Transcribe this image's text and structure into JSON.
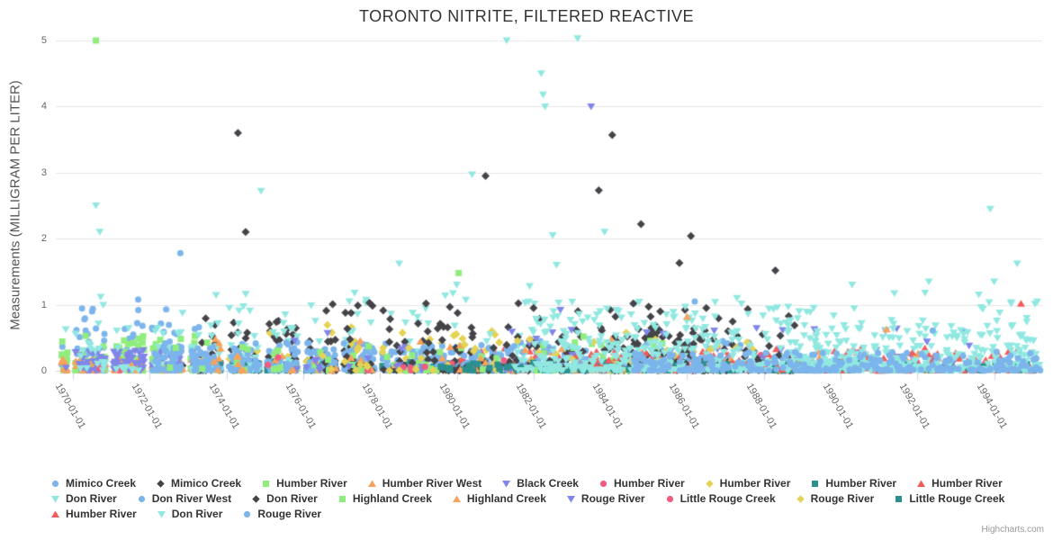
{
  "title": "TORONTO NITRITE, FILTERED REACTIVE",
  "credit": "Highcharts.com",
  "chart_data": {
    "type": "scatter",
    "title": "TORONTO NITRITE, FILTERED REACTIVE",
    "xlabel": "",
    "ylabel": "Measurements (MILLIGRAM PER LITER)",
    "ylim": [
      0,
      5
    ],
    "y_ticks": [
      0,
      1,
      2,
      3,
      4,
      5
    ],
    "x_ticks": [
      "1970-01-01",
      "1972-01-01",
      "1974-01-01",
      "1976-01-01",
      "1978-01-01",
      "1980-01-01",
      "1982-01-01",
      "1984-01-01",
      "1986-01-01",
      "1988-01-01",
      "1990-01-01",
      "1992-01-01",
      "1994-01-01"
    ],
    "x_tick_years": [
      1970,
      1972,
      1974,
      1976,
      1978,
      1980,
      1982,
      1984,
      1986,
      1988,
      1990,
      1992,
      1994
    ],
    "x_range_years": [
      1969.55,
      1995.3
    ],
    "grid": true,
    "legend_position": "bottom",
    "colors": {
      "grid": "#e6e6e6",
      "axis_line": "#ccd6eb",
      "tick": "#ccd6eb",
      "label": "#666666",
      "title": "#333333",
      "legend_text": "#333333",
      "credit": "#999999"
    },
    "series": [
      {
        "name": "Mimico Creek",
        "marker": "circle",
        "color": "#7cb5ec"
      },
      {
        "name": "Mimico Creek",
        "marker": "diamond",
        "color": "#434348"
      },
      {
        "name": "Humber River",
        "marker": "square",
        "color": "#90ed7d"
      },
      {
        "name": "Humber River West",
        "marker": "triangle",
        "color": "#f7a35c"
      },
      {
        "name": "Black Creek",
        "marker": "triangle-down",
        "color": "#8085e9"
      },
      {
        "name": "Humber River",
        "marker": "circle",
        "color": "#f15c80"
      },
      {
        "name": "Humber River",
        "marker": "diamond",
        "color": "#e4d354"
      },
      {
        "name": "Humber River",
        "marker": "square",
        "color": "#2b908f"
      },
      {
        "name": "Humber River",
        "marker": "triangle",
        "color": "#f45b5b"
      },
      {
        "name": "Don River",
        "marker": "triangle-down",
        "color": "#91e8e1"
      },
      {
        "name": "Don River West",
        "marker": "circle",
        "color": "#7cb5ec"
      },
      {
        "name": "Don River",
        "marker": "diamond",
        "color": "#434348"
      },
      {
        "name": "Highland Creek",
        "marker": "square",
        "color": "#90ed7d"
      },
      {
        "name": "Highland Creek",
        "marker": "triangle",
        "color": "#f7a35c"
      },
      {
        "name": "Rouge River",
        "marker": "triangle-down",
        "color": "#8085e9"
      },
      {
        "name": "Little Rouge Creek",
        "marker": "circle",
        "color": "#f15c80"
      },
      {
        "name": "Rouge River",
        "marker": "diamond",
        "color": "#e4d354"
      },
      {
        "name": "Little Rouge Creek",
        "marker": "square",
        "color": "#2b908f"
      },
      {
        "name": "Humber River",
        "marker": "triangle",
        "color": "#f45b5b"
      },
      {
        "name": "Don River",
        "marker": "triangle-down",
        "color": "#91e8e1"
      },
      {
        "name": "Rouge River",
        "marker": "circle",
        "color": "#7cb5ec"
      }
    ],
    "outlier_points": [
      [
        2,
        1970.6,
        5.0
      ],
      [
        9,
        1981.3,
        5.0
      ],
      [
        19,
        1983.15,
        5.03
      ],
      [
        19,
        1982.2,
        4.5
      ],
      [
        19,
        1982.25,
        4.18
      ],
      [
        19,
        1982.3,
        4.0
      ],
      [
        14,
        1983.5,
        4.0
      ],
      [
        1,
        1974.3,
        3.6
      ],
      [
        11,
        1984.05,
        3.57
      ],
      [
        9,
        1980.4,
        2.97
      ],
      [
        11,
        1980.75,
        2.95
      ],
      [
        11,
        1983.7,
        2.73
      ],
      [
        9,
        1974.9,
        2.72
      ],
      [
        9,
        1970.6,
        2.5
      ],
      [
        19,
        1993.9,
        2.45
      ],
      [
        11,
        1984.8,
        2.22
      ],
      [
        1,
        1974.5,
        2.1
      ],
      [
        9,
        1970.7,
        2.1
      ],
      [
        11,
        1986.1,
        2.04
      ],
      [
        19,
        1982.5,
        2.05
      ],
      [
        19,
        1983.85,
        2.1
      ],
      [
        11,
        1985.8,
        1.63
      ],
      [
        0,
        1972.8,
        1.78
      ],
      [
        0,
        1971.7,
        1.08
      ],
      [
        19,
        1994.6,
        1.62
      ],
      [
        9,
        1978.5,
        1.62
      ],
      [
        19,
        1982.6,
        1.6
      ],
      [
        9,
        1980.0,
        1.3
      ],
      [
        9,
        1981.9,
        1.28
      ],
      [
        11,
        1988.3,
        1.52
      ],
      [
        10,
        1986.2,
        1.05
      ],
      [
        11,
        1984.6,
        1.02
      ],
      [
        11,
        1985.0,
        0.97
      ],
      [
        11,
        1985.3,
        0.9
      ],
      [
        11,
        1986.5,
        0.95
      ],
      [
        18,
        1994.7,
        1.02
      ],
      [
        19,
        1990.3,
        1.3
      ],
      [
        19,
        1992.3,
        1.35
      ],
      [
        19,
        1992.2,
        1.18
      ],
      [
        19,
        1993.6,
        1.15
      ],
      [
        19,
        1994.0,
        1.35
      ],
      [
        13,
        1991.2,
        0.63
      ],
      [
        13,
        1986.0,
        0.82
      ],
      [
        14,
        1982.7,
        0.92
      ],
      [
        9,
        1977.2,
        1.05
      ],
      [
        1,
        1976.6,
        0.91
      ],
      [
        12,
        1980.05,
        1.48
      ],
      [
        11,
        1982.0,
        0.95
      ],
      [
        19,
        1987.3,
        1.1
      ],
      [
        9,
        1979.9,
        1.17
      ],
      [
        0,
        1970.5,
        0.9
      ],
      [
        0,
        1970.3,
        0.78
      ],
      [
        19,
        1989.3,
        0.95
      ],
      [
        19,
        1991.4,
        1.17
      ],
      [
        20,
        1992.4,
        0.61
      ],
      [
        14,
        1992.25,
        0.44
      ],
      [
        11,
        1977.1,
        0.88
      ],
      [
        12,
        1983.3,
        0.52
      ]
    ],
    "cluster_specs": [
      [
        0,
        1969.8,
        1973.3,
        130,
        0.95,
        3.2
      ],
      [
        1,
        1972.9,
        1977.3,
        90,
        0.8,
        2.6
      ],
      [
        2,
        1969.8,
        1973.2,
        120,
        0.55,
        2.4
      ],
      [
        3,
        1969.8,
        1973.2,
        90,
        0.18,
        2.0
      ],
      [
        4,
        1969.8,
        1973.2,
        110,
        0.3,
        1.6
      ],
      [
        5,
        1970.0,
        1989.0,
        25,
        0.25,
        2.0
      ],
      [
        6,
        1973.3,
        1981.5,
        70,
        0.7,
        2.4
      ],
      [
        7,
        1973.4,
        1990.0,
        260,
        0.14,
        1.8
      ],
      [
        8,
        1980.0,
        1995.2,
        150,
        0.35,
        2.5
      ],
      [
        9,
        1969.8,
        1983.0,
        190,
        1.2,
        3.5
      ],
      [
        9,
        1973.5,
        1976.0,
        40,
        1.0,
        2.5
      ],
      [
        10,
        1972.0,
        1988.5,
        420,
        0.45,
        2.5
      ],
      [
        10,
        1972.0,
        1980.0,
        150,
        0.35,
        2.0
      ],
      [
        11,
        1976.5,
        1989.0,
        260,
        1.05,
        3.0
      ],
      [
        11,
        1984.0,
        1986.5,
        80,
        0.65,
        1.5
      ],
      [
        12,
        1972.5,
        1986.0,
        70,
        0.45,
        2.2
      ],
      [
        13,
        1973.5,
        1992.5,
        80,
        0.5,
        2.6
      ],
      [
        14,
        1975.5,
        1993.5,
        75,
        0.65,
        2.6
      ],
      [
        15,
        1975.0,
        1992.0,
        25,
        0.2,
        2.0
      ],
      [
        16,
        1976.5,
        1988.5,
        60,
        0.6,
        2.4
      ],
      [
        17,
        1979.5,
        1995.2,
        160,
        0.12,
        1.8
      ],
      [
        18,
        1983.5,
        1995.2,
        110,
        0.3,
        2.4
      ],
      [
        19,
        1981.5,
        1995.2,
        480,
        1.05,
        3.2
      ],
      [
        19,
        1982.0,
        1987.0,
        120,
        0.9,
        2.2
      ],
      [
        19,
        1988.5,
        1995.2,
        200,
        0.75,
        2.2
      ],
      [
        20,
        1984.5,
        1995.2,
        260,
        0.28,
        2.4
      ]
    ]
  }
}
